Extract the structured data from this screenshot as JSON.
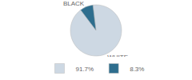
{
  "chart_data": {
    "type": "pie",
    "categories": [
      "WHITE",
      "BLACK"
    ],
    "values": [
      91.7,
      8.3
    ],
    "value_labels": [
      "91.7%",
      "8.3%"
    ],
    "colors": [
      "#cdd8e3",
      "#2e6e8e"
    ],
    "legend": "bottom"
  }
}
